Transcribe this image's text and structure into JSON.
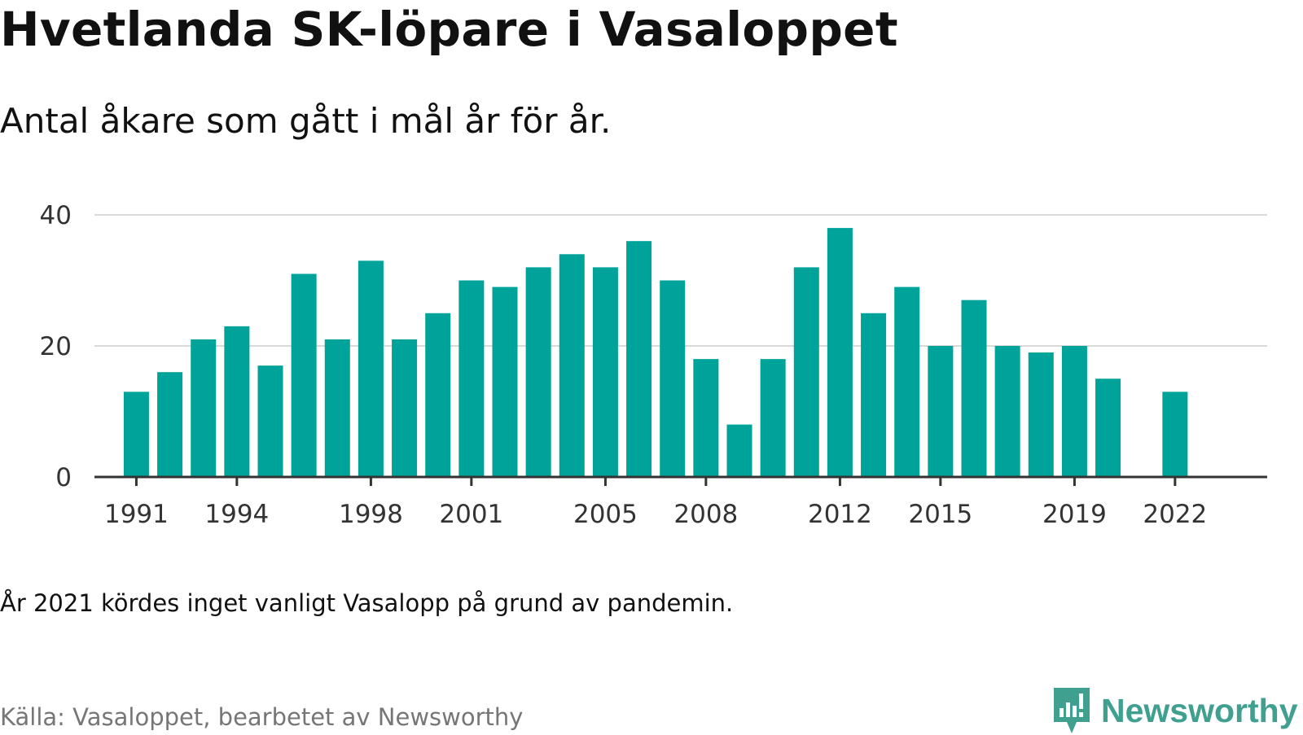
{
  "header": {
    "title": "Hvetlanda SK-löpare i Vasaloppet",
    "subtitle": "Antal åkare som gått i mål år för år."
  },
  "footer": {
    "note": "År 2021 kördes inget vanligt Vasalopp på grund av pandemin.",
    "source": "Källa: Vasaloppet, bearbetet av Newsworthy",
    "logo_text": "Newsworthy"
  },
  "colors": {
    "bar": "#00a39a",
    "grid": "#d9d9d9",
    "axis": "#333333",
    "logo": "#3fa090"
  },
  "chart_data": {
    "type": "bar",
    "title": "Hvetlanda SK-löpare i Vasaloppet",
    "subtitle": "Antal åkare som gått i mål år för år.",
    "xlabel": "",
    "ylabel": "",
    "x": [
      1991,
      1992,
      1993,
      1994,
      1995,
      1996,
      1997,
      1998,
      1999,
      2000,
      2001,
      2002,
      2003,
      2004,
      2005,
      2006,
      2007,
      2008,
      2009,
      2010,
      2011,
      2012,
      2013,
      2014,
      2015,
      2016,
      2017,
      2018,
      2019,
      2020,
      2022
    ],
    "values": [
      13,
      16,
      21,
      23,
      17,
      31,
      21,
      33,
      21,
      25,
      30,
      29,
      32,
      34,
      32,
      36,
      30,
      18,
      8,
      18,
      32,
      38,
      25,
      29,
      20,
      27,
      20,
      19,
      20,
      15,
      13
    ],
    "x_ticks": [
      "1991",
      "1994",
      "1998",
      "2001",
      "2005",
      "2008",
      "2012",
      "2015",
      "2019",
      "2022"
    ],
    "y_ticks": [
      "0",
      "20",
      "40"
    ],
    "xlim": [
      1989.75,
      2024.75
    ],
    "ylim": [
      0,
      40
    ],
    "grid": true,
    "legend": "none"
  }
}
